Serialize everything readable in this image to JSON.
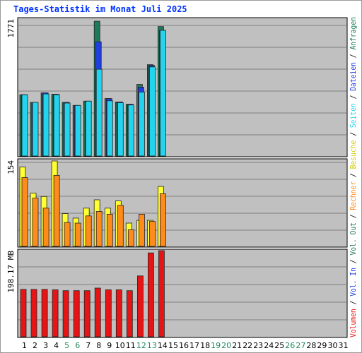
{
  "title": "Tages-Statistik im Monat Juli 2025",
  "colors": {
    "anfragen": "#1f7a5a",
    "dateien": "#1f3fdf",
    "seiten": "#22d4ee",
    "besuche": "#ffff33",
    "rechner": "#ff8c1a",
    "volumen": "#e61414",
    "panel_bg": "#c0c0c0",
    "grid": "#808080",
    "separator": "#000000"
  },
  "legend_right": [
    {
      "text": "Volumen",
      "color": "#e61414"
    },
    {
      "text": " / ",
      "color": "#000000"
    },
    {
      "text": "Vol. In",
      "color": "#1f3fdf"
    },
    {
      "text": " / ",
      "color": "#000000"
    },
    {
      "text": "Vol. Out",
      "color": "#1f7a5a"
    },
    {
      "text": " / ",
      "color": "#000000"
    },
    {
      "text": "Rechner",
      "color": "#ff8c1a"
    },
    {
      "text": " / ",
      "color": "#000000"
    },
    {
      "text": "Besuche",
      "color": "#cccc00"
    },
    {
      "text": " / ",
      "color": "#000000"
    },
    {
      "text": "Seiten",
      "color": "#22d4ee"
    },
    {
      "text": " / ",
      "color": "#000000"
    },
    {
      "text": "Dateien",
      "color": "#1f3fdf"
    },
    {
      "text": " / ",
      "color": "#000000"
    },
    {
      "text": "Anfragen",
      "color": "#1f7a5a"
    }
  ],
  "chart_data": [
    {
      "type": "bar",
      "panel": "top",
      "ymax_label": "1771",
      "ylim": [
        0,
        1771
      ],
      "categories": [
        "1",
        "2",
        "3",
        "4",
        "5",
        "6",
        "7",
        "8",
        "9",
        "10",
        "11",
        "12",
        "13",
        "14",
        "15",
        "16",
        "17",
        "18",
        "19",
        "20",
        "21",
        "22",
        "23",
        "24",
        "25",
        "26",
        "27",
        "28",
        "29",
        "30",
        "31"
      ],
      "series": [
        {
          "name": "Anfragen",
          "values": [
            805,
            705,
            830,
            810,
            705,
            665,
            720,
            1771,
            755,
            710,
            680,
            940,
            1200,
            1700,
            null,
            null,
            null,
            null,
            null,
            null,
            null,
            null,
            null,
            null,
            null,
            null,
            null,
            null,
            null,
            null,
            null
          ]
        },
        {
          "name": "Dateien",
          "values": [
            805,
            705,
            830,
            810,
            705,
            665,
            720,
            1500,
            755,
            710,
            680,
            905,
            1190,
            1650,
            null,
            null,
            null,
            null,
            null,
            null,
            null,
            null,
            null,
            null,
            null,
            null,
            null,
            null,
            null,
            null,
            null
          ]
        },
        {
          "name": "Seiten",
          "values": [
            805,
            705,
            815,
            805,
            695,
            665,
            720,
            1140,
            725,
            700,
            670,
            840,
            1170,
            1650,
            null,
            null,
            null,
            null,
            null,
            null,
            null,
            null,
            null,
            null,
            null,
            null,
            null,
            null,
            null,
            null,
            null
          ]
        }
      ]
    },
    {
      "type": "bar",
      "panel": "middle",
      "ymax_label": "154",
      "ylim": [
        0,
        154
      ],
      "categories": [
        "1",
        "2",
        "3",
        "4",
        "5",
        "6",
        "7",
        "8",
        "9",
        "10",
        "11",
        "12",
        "13",
        "14",
        "15",
        "16",
        "17",
        "18",
        "19",
        "20",
        "21",
        "22",
        "23",
        "24",
        "25",
        "26",
        "27",
        "28",
        "29",
        "30",
        "31"
      ],
      "series": [
        {
          "name": "Besuche",
          "values": [
            143,
            96,
            90,
            154,
            59,
            51,
            69,
            84,
            69,
            82,
            42,
            47,
            47,
            108,
            null,
            null,
            null,
            null,
            null,
            null,
            null,
            null,
            null,
            null,
            null,
            null,
            null,
            null,
            null,
            null,
            null
          ]
        },
        {
          "name": "Rechner",
          "values": [
            124,
            87,
            69,
            128,
            43,
            42,
            55,
            63,
            58,
            74,
            30,
            58,
            45,
            95,
            null,
            null,
            null,
            null,
            null,
            null,
            null,
            null,
            null,
            null,
            null,
            null,
            null,
            null,
            null,
            null,
            null
          ]
        }
      ]
    },
    {
      "type": "bar",
      "panel": "bottom",
      "ymax_label": "198.17 MB",
      "ylim": [
        0,
        198.17
      ],
      "categories": [
        "1",
        "2",
        "3",
        "4",
        "5",
        "6",
        "7",
        "8",
        "9",
        "10",
        "11",
        "12",
        "13",
        "14",
        "15",
        "16",
        "17",
        "18",
        "19",
        "20",
        "21",
        "22",
        "23",
        "24",
        "25",
        "26",
        "27",
        "28",
        "29",
        "30",
        "31"
      ],
      "series": [
        {
          "name": "Volumen",
          "values": [
            109,
            109,
            109,
            108,
            106,
            106,
            106,
            112,
            108,
            108,
            106,
            140,
            193,
            198.17,
            null,
            null,
            null,
            null,
            null,
            null,
            null,
            null,
            null,
            null,
            null,
            null,
            null,
            null,
            null,
            null,
            null
          ]
        }
      ]
    }
  ],
  "x_axis": {
    "labels": [
      "1",
      "2",
      "3",
      "4",
      "5",
      "6",
      "7",
      "8",
      "9",
      "10",
      "11",
      "12",
      "13",
      "14",
      "15",
      "16",
      "17",
      "18",
      "19",
      "20",
      "21",
      "22",
      "23",
      "24",
      "25",
      "26",
      "27",
      "28",
      "29",
      "30",
      "31"
    ],
    "weekend_days": [
      "5",
      "6",
      "12",
      "13",
      "19",
      "20",
      "26",
      "27"
    ],
    "weekday_color": "#000000",
    "weekend_color": "#1f8a5a"
  }
}
